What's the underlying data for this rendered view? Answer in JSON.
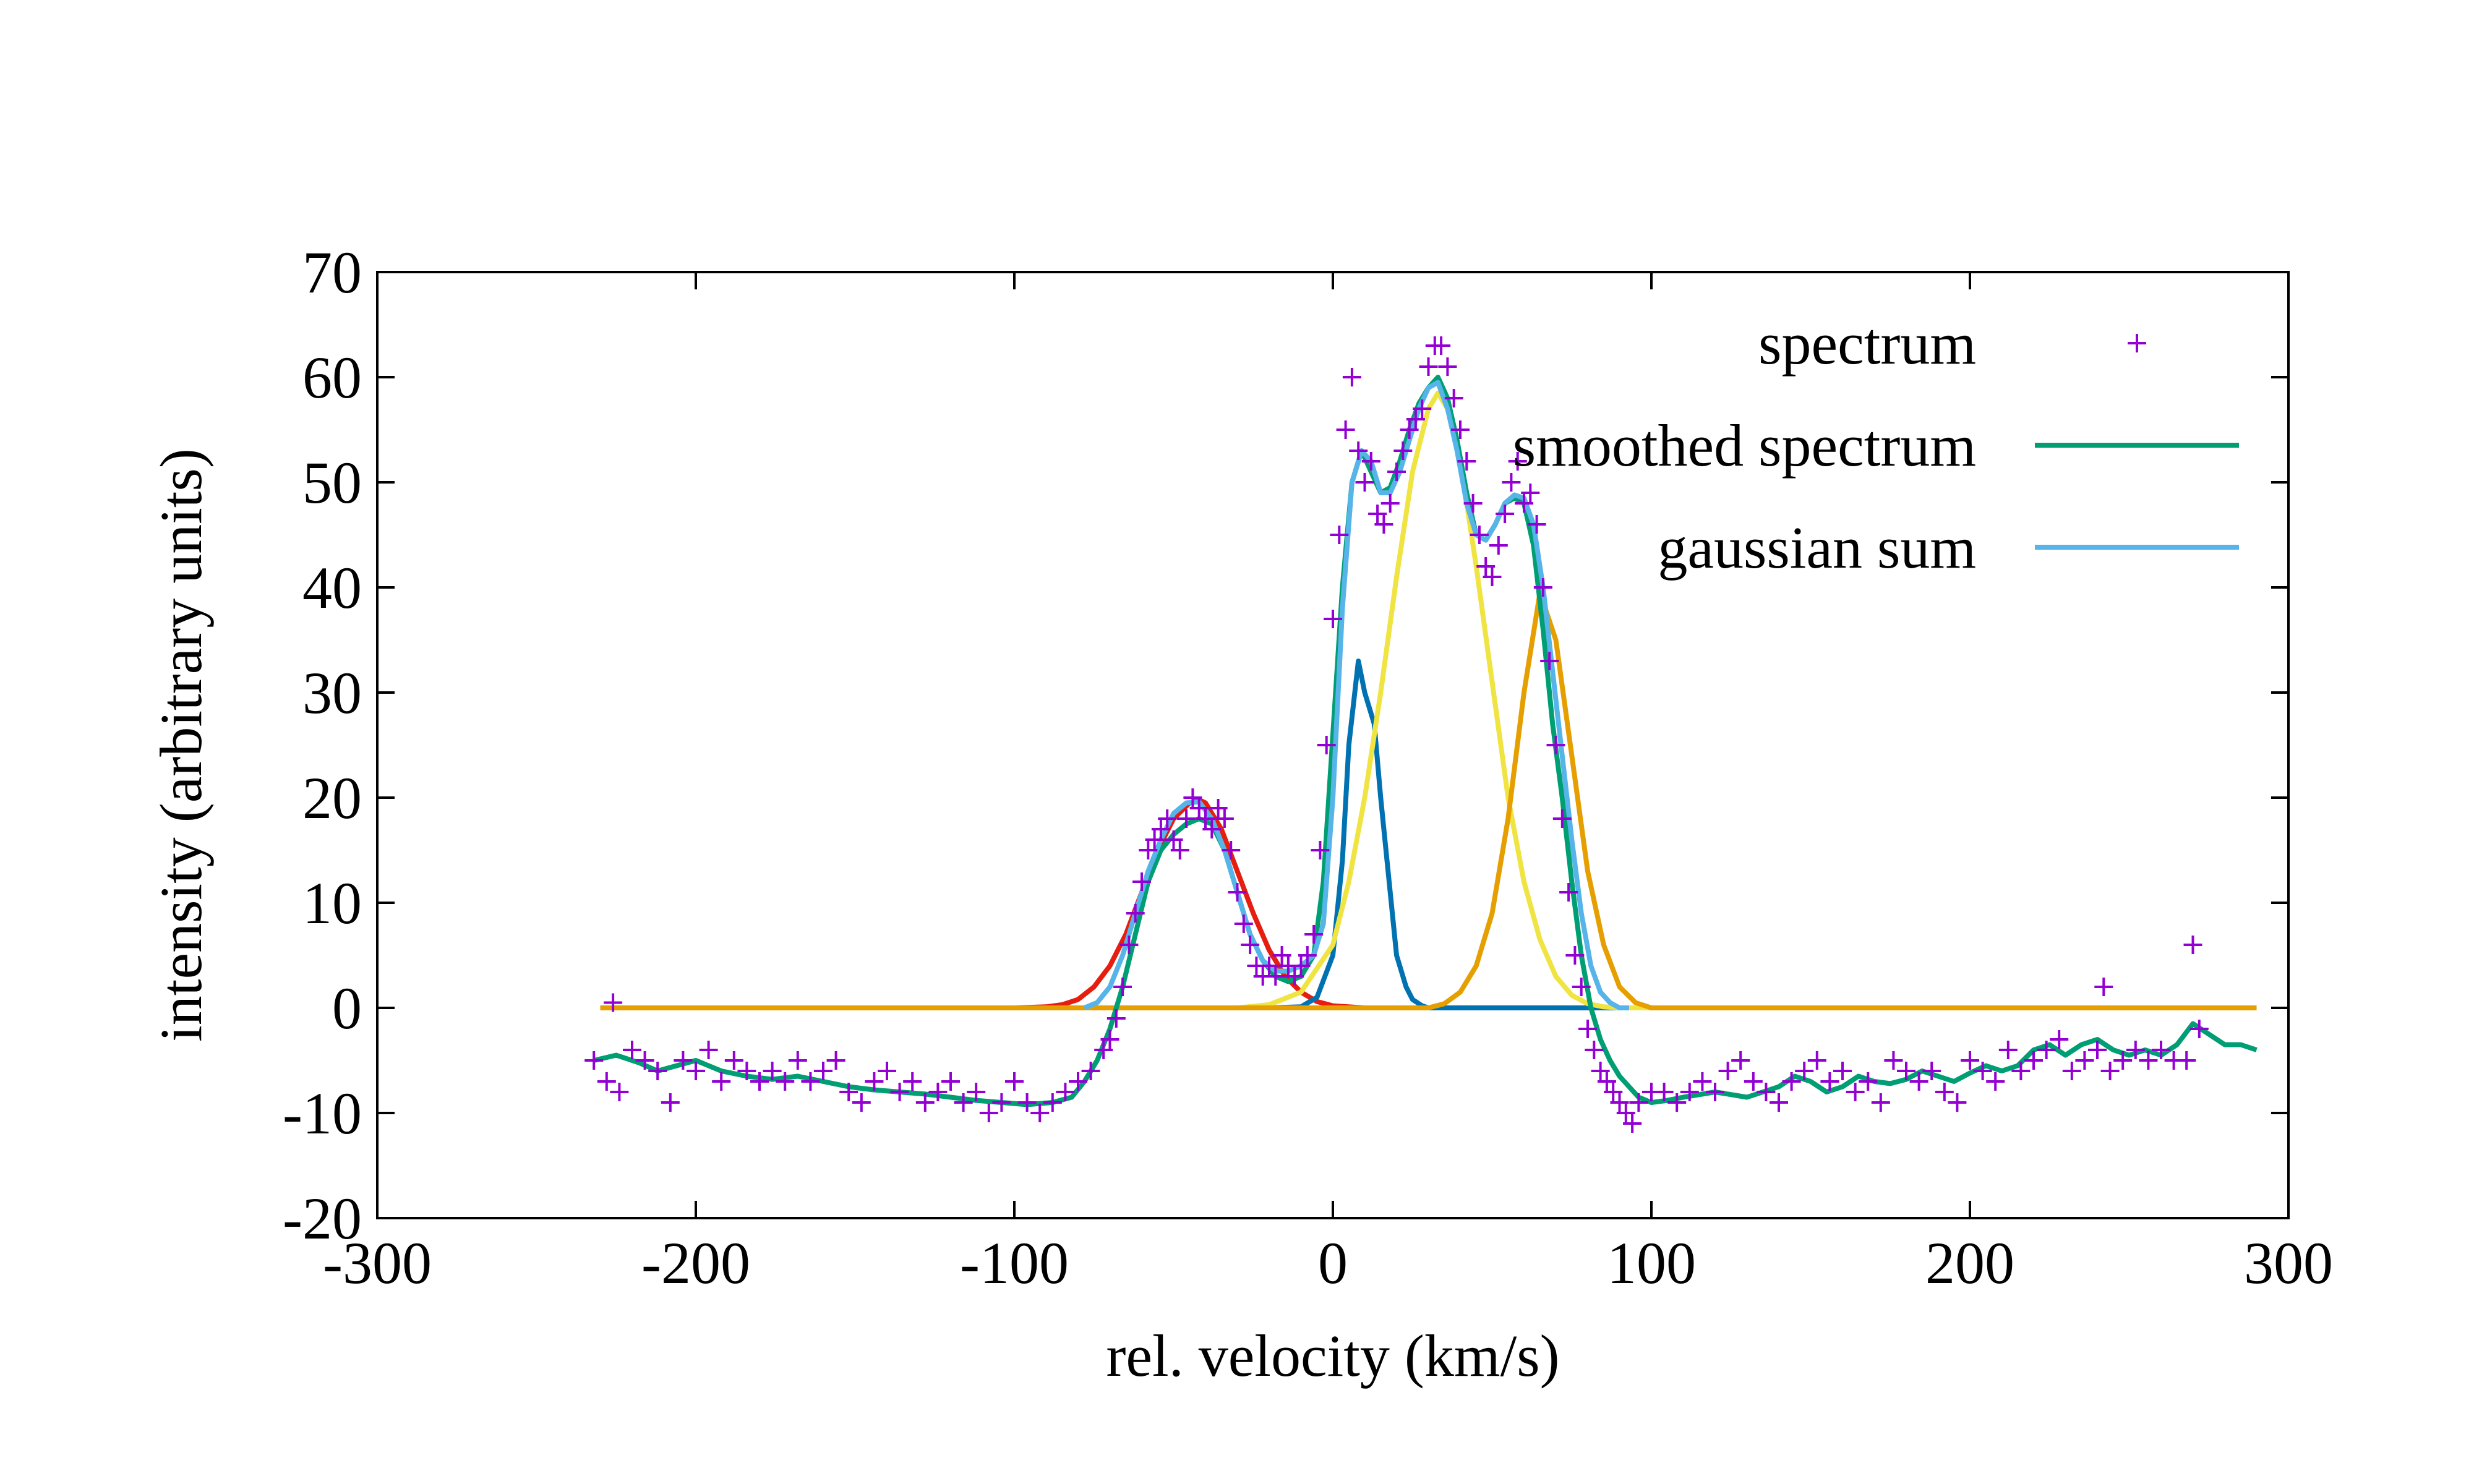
{
  "chart_data": {
    "type": "line",
    "title": "",
    "xlabel": "rel. velocity (km/s)",
    "ylabel": "intensity (arbitrary units)",
    "xlim": [
      -300,
      300
    ],
    "ylim": [
      -20,
      70
    ],
    "x_ticks": [
      -300,
      -200,
      -100,
      0,
      100,
      200,
      300
    ],
    "y_ticks": [
      -20,
      -10,
      0,
      10,
      20,
      30,
      40,
      50,
      60,
      70
    ],
    "x_tick_labels": [
      "-300",
      "-200",
      "-100",
      "0",
      "100",
      "200",
      "300"
    ],
    "y_tick_labels": [
      "-20",
      "-10",
      "0",
      "10",
      "20",
      "30",
      "40",
      "50",
      "60",
      "70"
    ],
    "grid": false,
    "legend_position": "top-right",
    "colors": {
      "spectrum": "#9400d3",
      "smoothed": "#009e73",
      "gaussian_sum": "#56b4e9",
      "g1": "#e51e10",
      "g2": "#0072b2",
      "g3": "#f0e442",
      "g4": "#e69f00"
    },
    "series": [
      {
        "name": "spectrum",
        "style": "points",
        "x": [
          -232,
          -228,
          -224,
          -220,
          -216,
          -212,
          -208,
          -204,
          -200,
          -196,
          -192,
          -188,
          -184,
          -180,
          -176,
          -172,
          -168,
          -164,
          -160,
          -156,
          -152,
          -148,
          -144,
          -140,
          -136,
          -132,
          -128,
          -124,
          -120,
          -116,
          -112,
          -108,
          -104,
          -100,
          -96,
          -92,
          -88,
          -84,
          -80,
          -76,
          -72,
          -70,
          -68,
          -66,
          -64,
          -62,
          -60,
          -58,
          -56,
          -54,
          -52,
          -50,
          -48,
          -46,
          -44,
          -42,
          -40,
          -38,
          -36,
          -34,
          -32,
          -30,
          -28,
          -26,
          -24,
          -22,
          -20,
          -18,
          -16,
          -14,
          -12,
          -10,
          -8,
          -6,
          -4,
          -2,
          0,
          2,
          4,
          6,
          8,
          10,
          12,
          14,
          16,
          18,
          20,
          22,
          24,
          26,
          28,
          30,
          32,
          34,
          36,
          38,
          40,
          42,
          44,
          46,
          48,
          50,
          52,
          54,
          56,
          58,
          60,
          62,
          64,
          66,
          68,
          70,
          72,
          74,
          76,
          78,
          80,
          82,
          84,
          86,
          88,
          90,
          92,
          94,
          96,
          100,
          104,
          108,
          112,
          116,
          120,
          124,
          128,
          132,
          136,
          140,
          144,
          148,
          152,
          156,
          160,
          164,
          168,
          172,
          176,
          180,
          184,
          188,
          192,
          196,
          200,
          204,
          208,
          212,
          216,
          220,
          224,
          228,
          232,
          236,
          240,
          244,
          248,
          252,
          256,
          260,
          264,
          268,
          272,
          -226,
          242,
          270
        ],
        "y": [
          -5,
          -7,
          -8,
          -4,
          -5,
          -6,
          -9,
          -5,
          -6,
          -4,
          -7,
          -5,
          -6,
          -7,
          -6,
          -7,
          -5,
          -7,
          -6,
          -5,
          -8,
          -9,
          -7,
          -6,
          -8,
          -7,
          -9,
          -8,
          -7,
          -9,
          -8,
          -10,
          -9,
          -7,
          -9,
          -10,
          -9,
          -8,
          -7,
          -6,
          -4,
          -3,
          -1,
          2,
          6,
          9,
          12,
          15,
          16,
          17,
          18,
          16,
          15,
          18,
          20,
          19,
          18,
          17,
          19,
          18,
          15,
          11,
          8,
          6,
          4,
          3,
          4,
          3,
          5,
          4,
          3,
          4,
          5,
          7,
          15,
          25,
          37,
          45,
          55,
          60,
          53,
          50,
          52,
          47,
          46,
          48,
          51,
          53,
          55,
          56,
          57,
          61,
          63,
          63,
          61,
          58,
          55,
          52,
          48,
          45,
          42,
          41,
          44,
          47,
          50,
          52,
          48,
          49,
          46,
          40,
          33,
          25,
          18,
          11,
          5,
          2,
          -2,
          -4,
          -6,
          -7,
          -8,
          -9,
          -10,
          -11,
          -9,
          -8,
          -8,
          -9,
          -8,
          -7,
          -8,
          -6,
          -5,
          -7,
          -8,
          -9,
          -7,
          -6,
          -5,
          -7,
          -6,
          -8,
          -7,
          -9,
          -5,
          -6,
          -7,
          -6,
          -8,
          -9,
          -5,
          -6,
          -7,
          -4,
          -6,
          -5,
          -4,
          -3,
          -6,
          -5,
          -4,
          -6,
          -5,
          -4,
          -5,
          -4,
          -5,
          -5,
          -2,
          0.5,
          2,
          6
        ]
      },
      {
        "name": "smoothed spectrum",
        "style": "line",
        "x": [
          -232,
          -225,
          -218,
          -212,
          -206,
          -200,
          -192,
          -184,
          -176,
          -168,
          -160,
          -152,
          -144,
          -136,
          -128,
          -120,
          -112,
          -104,
          -96,
          -88,
          -82,
          -78,
          -74,
          -70,
          -66,
          -62,
          -58,
          -54,
          -50,
          -46,
          -42,
          -38,
          -34,
          -30,
          -26,
          -22,
          -18,
          -14,
          -10,
          -6,
          -3,
          0,
          3,
          6,
          9,
          12,
          15,
          18,
          21,
          24,
          27,
          30,
          33,
          36,
          39,
          42,
          45,
          48,
          51,
          54,
          57,
          60,
          63,
          66,
          69,
          72,
          75,
          78,
          81,
          84,
          87,
          90,
          93,
          96,
          100,
          105,
          110,
          120,
          130,
          140,
          145,
          150,
          155,
          160,
          165,
          170,
          175,
          180,
          185,
          190,
          195,
          200,
          205,
          210,
          215,
          220,
          225,
          230,
          235,
          240,
          245,
          250,
          255,
          260,
          265,
          270,
          275,
          280,
          285,
          290
        ],
        "y": [
          -5,
          -4.5,
          -5.2,
          -6,
          -5.5,
          -5,
          -6,
          -6.5,
          -6.8,
          -6.5,
          -7,
          -7.5,
          -7.8,
          -8,
          -8.2,
          -8.5,
          -8.8,
          -9,
          -9.2,
          -9,
          -8.5,
          -7,
          -5,
          -2,
          2,
          7,
          12,
          15,
          16.5,
          17.5,
          18,
          17.5,
          15,
          11,
          7,
          4.5,
          3,
          2.5,
          3,
          5,
          12,
          26,
          40,
          50,
          53,
          51,
          49,
          49.5,
          52,
          55,
          57.5,
          59,
          60,
          58,
          54,
          49,
          45,
          44.5,
          46,
          48,
          48.5,
          48,
          44,
          36,
          27,
          20,
          12,
          5,
          0,
          -3,
          -5,
          -6.5,
          -7.5,
          -8.5,
          -9,
          -8.8,
          -8.5,
          -8,
          -8.5,
          -7.5,
          -6.5,
          -7,
          -8,
          -7.5,
          -6.5,
          -7,
          -7.2,
          -6.8,
          -6,
          -6.5,
          -7,
          -6.2,
          -5.5,
          -6,
          -5.5,
          -4,
          -3.5,
          -4.5,
          -3.5,
          -3,
          -4,
          -4.5,
          -4,
          -4.5,
          -3.5,
          -1.5,
          -2.5,
          -3.5,
          -3.5,
          -4
        ]
      },
      {
        "name": "gaussian sum",
        "style": "line",
        "x": [
          -78,
          -74,
          -70,
          -66,
          -62,
          -58,
          -54,
          -50,
          -46,
          -42,
          -38,
          -34,
          -30,
          -26,
          -22,
          -18,
          -14,
          -10,
          -6,
          -3,
          0,
          3,
          6,
          9,
          12,
          15,
          18,
          21,
          24,
          27,
          30,
          33,
          36,
          39,
          42,
          45,
          48,
          51,
          54,
          57,
          60,
          63,
          66,
          69,
          72,
          75,
          78,
          81,
          84,
          87,
          90,
          93
        ],
        "y": [
          0,
          0.5,
          2,
          5,
          9,
          13,
          16,
          18.5,
          19.5,
          19.6,
          18,
          15,
          11,
          7,
          4.5,
          3.5,
          3.5,
          4,
          5,
          8,
          20,
          38,
          50,
          53,
          52,
          49,
          49,
          51,
          54,
          57,
          59,
          59.5,
          57,
          53,
          48,
          45,
          44.5,
          46,
          48,
          48.8,
          48.5,
          46,
          40,
          32,
          24,
          16,
          9,
          4,
          1.5,
          0.5,
          0,
          0
        ]
      },
      {
        "name": "",
        "style": "line",
        "x": [
          -230,
          -120,
          -100,
          -90,
          -85,
          -80,
          -75,
          -70,
          -65,
          -60,
          -55,
          -50,
          -45,
          -42,
          -40,
          -35,
          -30,
          -25,
          -20,
          -15,
          -10,
          -5,
          0,
          10,
          50,
          290
        ],
        "y": [
          0,
          0,
          0,
          0.1,
          0.3,
          0.8,
          2,
          4,
          7,
          11,
          15,
          18,
          19.5,
          19.8,
          19.5,
          17,
          13,
          9,
          5.5,
          3,
          1.5,
          0.6,
          0.2,
          0,
          0,
          0
        ]
      },
      {
        "name": "",
        "style": "line",
        "x": [
          -230,
          -20,
          -10,
          -5,
          0,
          3,
          5,
          8,
          10,
          13,
          15,
          18,
          20,
          23,
          25,
          28,
          30,
          35,
          290
        ],
        "y": [
          0,
          0,
          0.1,
          1,
          5,
          14,
          25,
          33,
          30,
          27,
          20,
          11,
          5,
          2,
          0.8,
          0.2,
          0,
          0,
          0
        ]
      },
      {
        "name": "",
        "style": "line",
        "x": [
          -230,
          -30,
          -20,
          -10,
          0,
          5,
          10,
          15,
          20,
          25,
          30,
          33,
          36,
          40,
          45,
          50,
          55,
          60,
          65,
          70,
          75,
          80,
          85,
          90,
          100,
          290
        ],
        "y": [
          0,
          0,
          0.3,
          1.5,
          6,
          12,
          20,
          30,
          41,
          51,
          57,
          58.5,
          57,
          52,
          42,
          31,
          20,
          12,
          6.5,
          3,
          1.2,
          0.4,
          0.1,
          0,
          0,
          0
        ]
      },
      {
        "name": "",
        "style": "line",
        "x": [
          -230,
          30,
          35,
          40,
          45,
          50,
          55,
          60,
          65,
          70,
          75,
          80,
          85,
          90,
          95,
          100,
          290
        ],
        "y": [
          0,
          0,
          0.4,
          1.5,
          4,
          9,
          18,
          30,
          39.5,
          35,
          24,
          13,
          6,
          2,
          0.5,
          0,
          0
        ]
      }
    ],
    "legend": [
      {
        "label": "spectrum",
        "series": 0
      },
      {
        "label": "smoothed spectrum",
        "series": 1
      },
      {
        "label": "gaussian sum",
        "series": 2
      }
    ]
  }
}
